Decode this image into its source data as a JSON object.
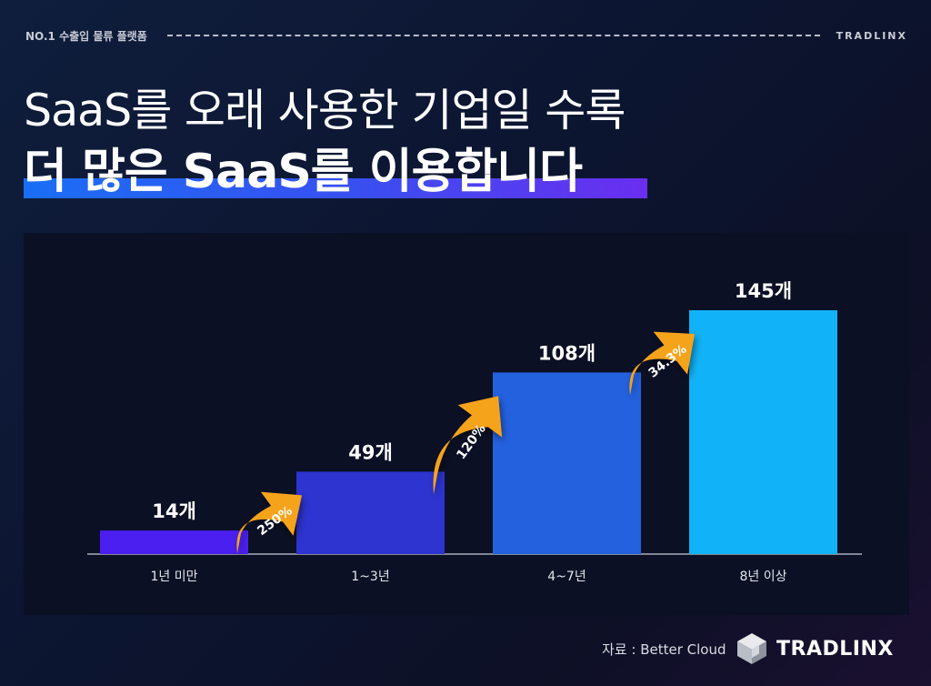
{
  "header": {
    "tag": "NO.1 수출입 물류 플랫폼",
    "brand": "TRADLINX"
  },
  "headline": {
    "line1": "SaaS를 오래 사용한 기업일 수록",
    "line2": "더 많은 SaaS를 이용합니다"
  },
  "chart_data": {
    "type": "bar",
    "categories": [
      "1년 미만",
      "1~3년",
      "4~7년",
      "8년 이상"
    ],
    "values": [
      14,
      49,
      108,
      145
    ],
    "value_labels": [
      "14개",
      "49개",
      "108개",
      "145개"
    ],
    "growth_labels": [
      "250%",
      "120%",
      "34.3%"
    ],
    "bar_colors": [
      "#4b1ff0",
      "#2d34d0",
      "#2461df",
      "#11b2f7"
    ],
    "arrow_color": "#f6a31b",
    "ylim": [
      0,
      145
    ],
    "title": "",
    "xlabel": "",
    "ylabel": "",
    "grid": false
  },
  "footer": {
    "source": "자료 : Better Cloud",
    "logo_text": "TRADLINX"
  }
}
